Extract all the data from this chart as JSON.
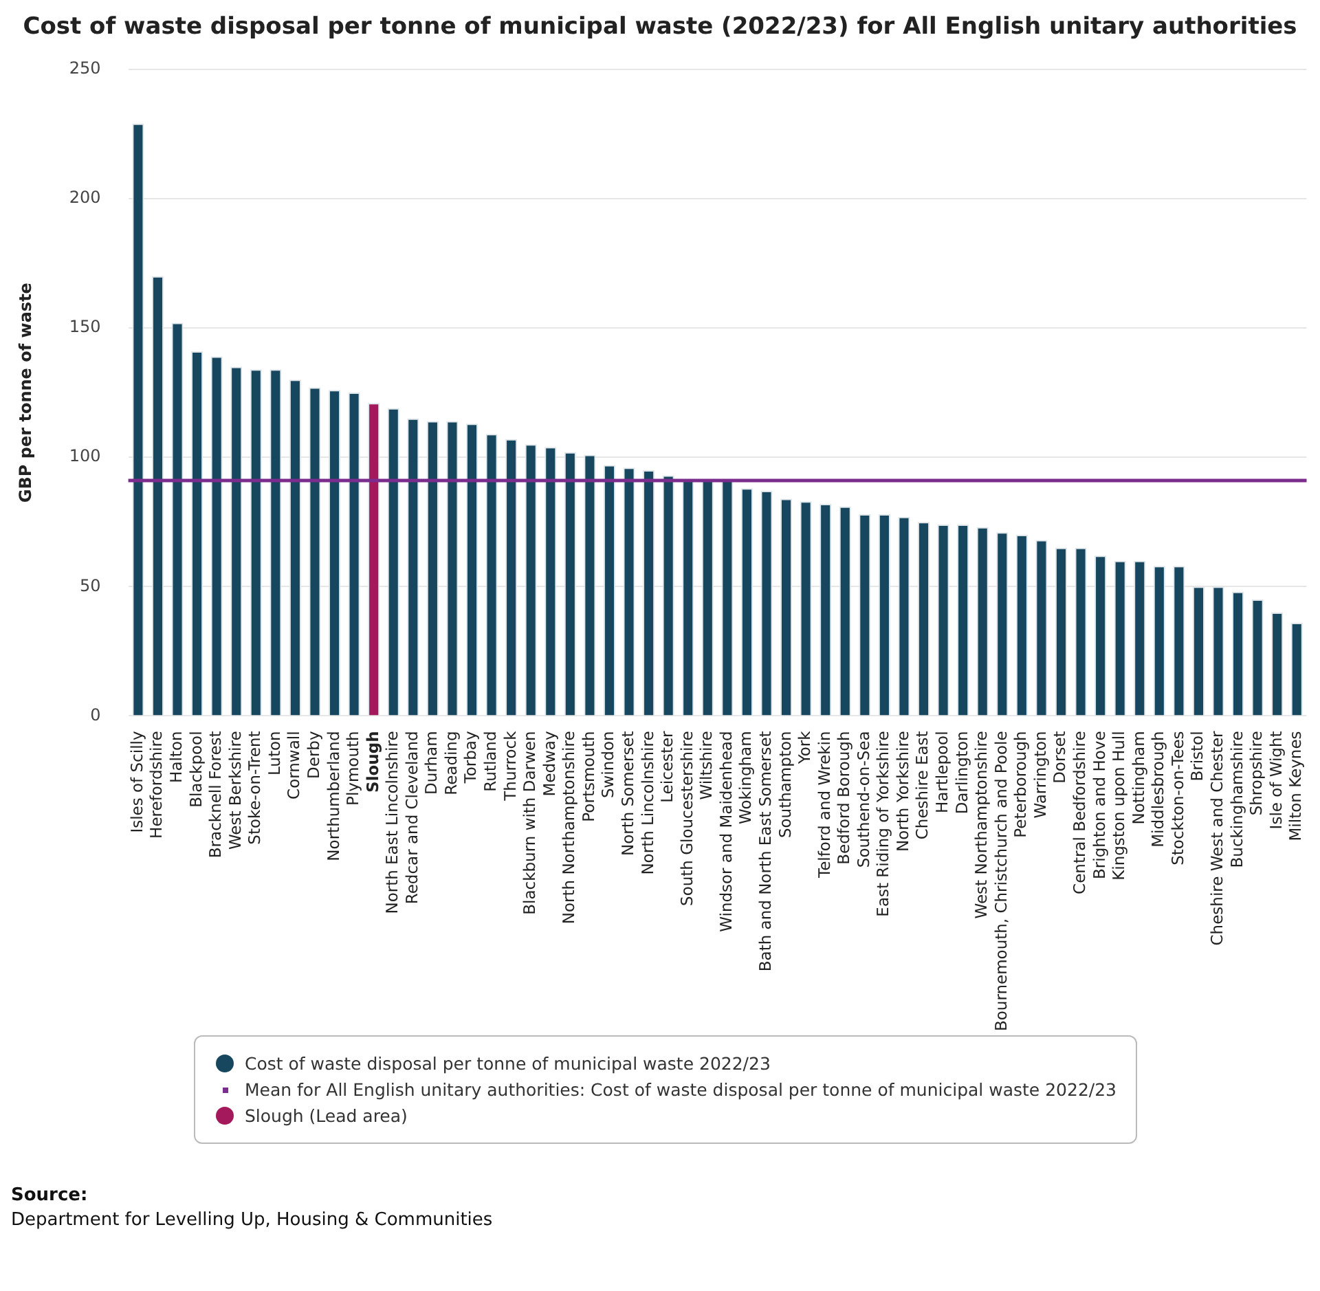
{
  "chart_data": {
    "type": "bar",
    "title": "Cost of waste disposal per tonne of municipal waste (2022/23) for All English unitary authorities",
    "ylabel": "GBP per tonne of waste",
    "categories": [
      "Isles of Scilly",
      "Herefordshire",
      "Halton",
      "Blackpool",
      "Bracknell Forest",
      "West Berkshire",
      "Stoke-on-Trent",
      "Luton",
      "Cornwall",
      "Derby",
      "Northumberland",
      "Plymouth",
      "Slough",
      "North East Lincolnshire",
      "Redcar and Cleveland",
      "Durham",
      "Reading",
      "Torbay",
      "Rutland",
      "Thurrock",
      "Blackburn with Darwen",
      "Medway",
      "North Northamptonshire",
      "Portsmouth",
      "Swindon",
      "North Somerset",
      "North Lincolnshire",
      "Leicester",
      "South Gloucestershire",
      "Wiltshire",
      "Windsor and Maidenhead",
      "Wokingham",
      "Bath and North East Somerset",
      "Southampton",
      "York",
      "Telford and Wrekin",
      "Bedford Borough",
      "Southend-on-Sea",
      "East Riding of Yorkshire",
      "North Yorkshire",
      "Cheshire East",
      "Hartlepool",
      "Darlington",
      "West Northamptonshire",
      "Bournemouth, Christchurch and Poole",
      "Peterborough",
      "Warrington",
      "Dorset",
      "Central Bedfordshire",
      "Brighton and Hove",
      "Kingston upon Hull",
      "Nottingham",
      "Middlesbrough",
      "Stockton-on-Tees",
      "Bristol",
      "Cheshire West and Chester",
      "Buckinghamshire",
      "Shropshire",
      "Isle of Wight",
      "Milton Keynes"
    ],
    "stacked": true,
    "series": [
      {
        "name": "Cost of waste disposal per tonne of municipal waste 2022/23",
        "color": "#17475f",
        "values": [
          229,
          170,
          152,
          141,
          139,
          135,
          134,
          134,
          130,
          127,
          126,
          125,
          null,
          119,
          115,
          114,
          114,
          113,
          109,
          107,
          105,
          104,
          102,
          101,
          97,
          96,
          95,
          93,
          91,
          91,
          91,
          88,
          87,
          84,
          83,
          82,
          81,
          78,
          78,
          77,
          75,
          74,
          74,
          73,
          71,
          70,
          68,
          65,
          65,
          62,
          60,
          60,
          58,
          58,
          50,
          50,
          48,
          45,
          40,
          36
        ]
      },
      {
        "name": "Slough (Lead area)",
        "color": "#a3195b",
        "values": [
          null,
          null,
          null,
          null,
          null,
          null,
          null,
          null,
          null,
          null,
          null,
          null,
          121,
          null,
          null,
          null,
          null,
          null,
          null,
          null,
          null,
          null,
          null,
          null,
          null,
          null,
          null,
          null,
          null,
          null,
          null,
          null,
          null,
          null,
          null,
          null,
          null,
          null,
          null,
          null,
          null,
          null,
          null,
          null,
          null,
          null,
          null,
          null,
          null,
          null,
          null,
          null,
          null,
          null,
          null,
          null,
          null,
          null,
          null,
          null
        ]
      }
    ],
    "ref_lines": [
      {
        "axis": "y",
        "value": 91,
        "label": "Mean for All English unitary authorities: Cost of waste disposal per tonne of municipal waste 2022/23",
        "color": "#7b2d8e"
      }
    ],
    "ylim": [
      0,
      250
    ],
    "yticks": [
      0,
      50,
      100,
      150,
      200,
      250
    ],
    "grid": "y",
    "legend": "bottom",
    "annotations": [
      "Source:",
      "Department for Levelling Up, Housing & Communities"
    ]
  }
}
